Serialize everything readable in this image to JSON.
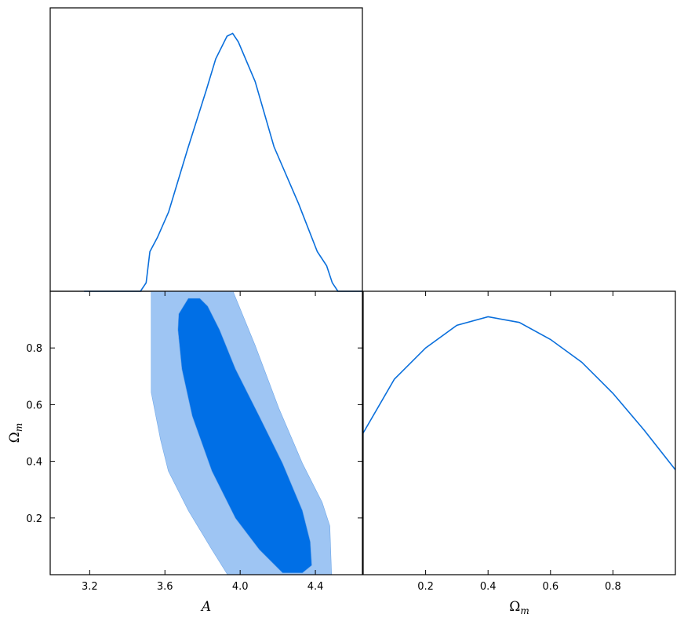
{
  "chart_data": [
    {
      "type": "line",
      "color": "#0a6fdc",
      "x": [
        3.17,
        3.47,
        3.5,
        3.52,
        3.56,
        3.62,
        3.72,
        3.82,
        3.87,
        3.93,
        3.96,
        3.99,
        4.08,
        4.18,
        4.31,
        4.41,
        4.46,
        4.49,
        4.52,
        4.65
      ],
      "values": [
        0,
        0,
        0.03,
        0.14,
        0.19,
        0.28,
        0.5,
        0.71,
        0.82,
        0.9,
        0.91,
        0.88,
        0.74,
        0.51,
        0.31,
        0.14,
        0.09,
        0.03,
        0,
        0
      ],
      "xlim": [
        2.99,
        4.65
      ],
      "ylim": [
        0,
        1
      ]
    },
    {
      "type": "contour",
      "xlabel": "A",
      "ylabel": "Ω",
      "ylabel_sub": "m",
      "xlim": [
        2.99,
        4.65
      ],
      "ylim": [
        0,
        1
      ],
      "xticks": [
        3.2,
        3.6,
        {
          "value": 4,
          "label": "4.0"
        },
        4.4
      ],
      "yticks": [
        0.2,
        0.4,
        0.6,
        0.8
      ],
      "contours": [
        {
          "color": "#9ec5f3",
          "x": [
            3.527,
            3.527,
            3.577,
            3.618,
            3.724,
            3.849,
            3.933,
            4.486,
            4.477,
            4.436,
            4.331,
            4.206,
            4.08,
            3.962
          ],
          "y": [
            1.0,
            0.643,
            0.476,
            0.366,
            0.227,
            0.089,
            0,
            0,
            0.172,
            0.255,
            0.393,
            0.587,
            0.809,
            1.0
          ]
        },
        {
          "color": "#006fe6",
          "x": [
            3.673,
            3.724,
            3.786,
            3.828,
            3.891,
            3.975,
            4.101,
            4.226,
            4.331,
            4.373,
            4.381,
            4.331,
            4.226,
            4.101,
            3.975,
            3.849,
            3.745,
            3.69,
            3.669
          ],
          "y": [
            0.92,
            0.975,
            0.975,
            0.947,
            0.864,
            0.726,
            0.56,
            0.393,
            0.227,
            0.116,
            0.033,
            0.006,
            0.006,
            0.089,
            0.199,
            0.366,
            0.56,
            0.726,
            0.864
          ]
        }
      ]
    },
    {
      "type": "line",
      "color": "#0a6fdc",
      "xlabel": "Ω",
      "xlabel_sub": "m",
      "x": [
        0,
        0.1,
        0.2,
        0.3,
        0.4,
        0.5,
        0.6,
        0.7,
        0.8,
        0.9,
        1.0
      ],
      "values": [
        0.5,
        0.69,
        0.8,
        0.88,
        0.91,
        0.89,
        0.83,
        0.75,
        0.64,
        0.51,
        0.37
      ],
      "xlim": [
        0,
        1
      ],
      "ylim": [
        0,
        1
      ],
      "xticks": [
        0.2,
        0.4,
        0.6,
        0.8
      ]
    }
  ]
}
